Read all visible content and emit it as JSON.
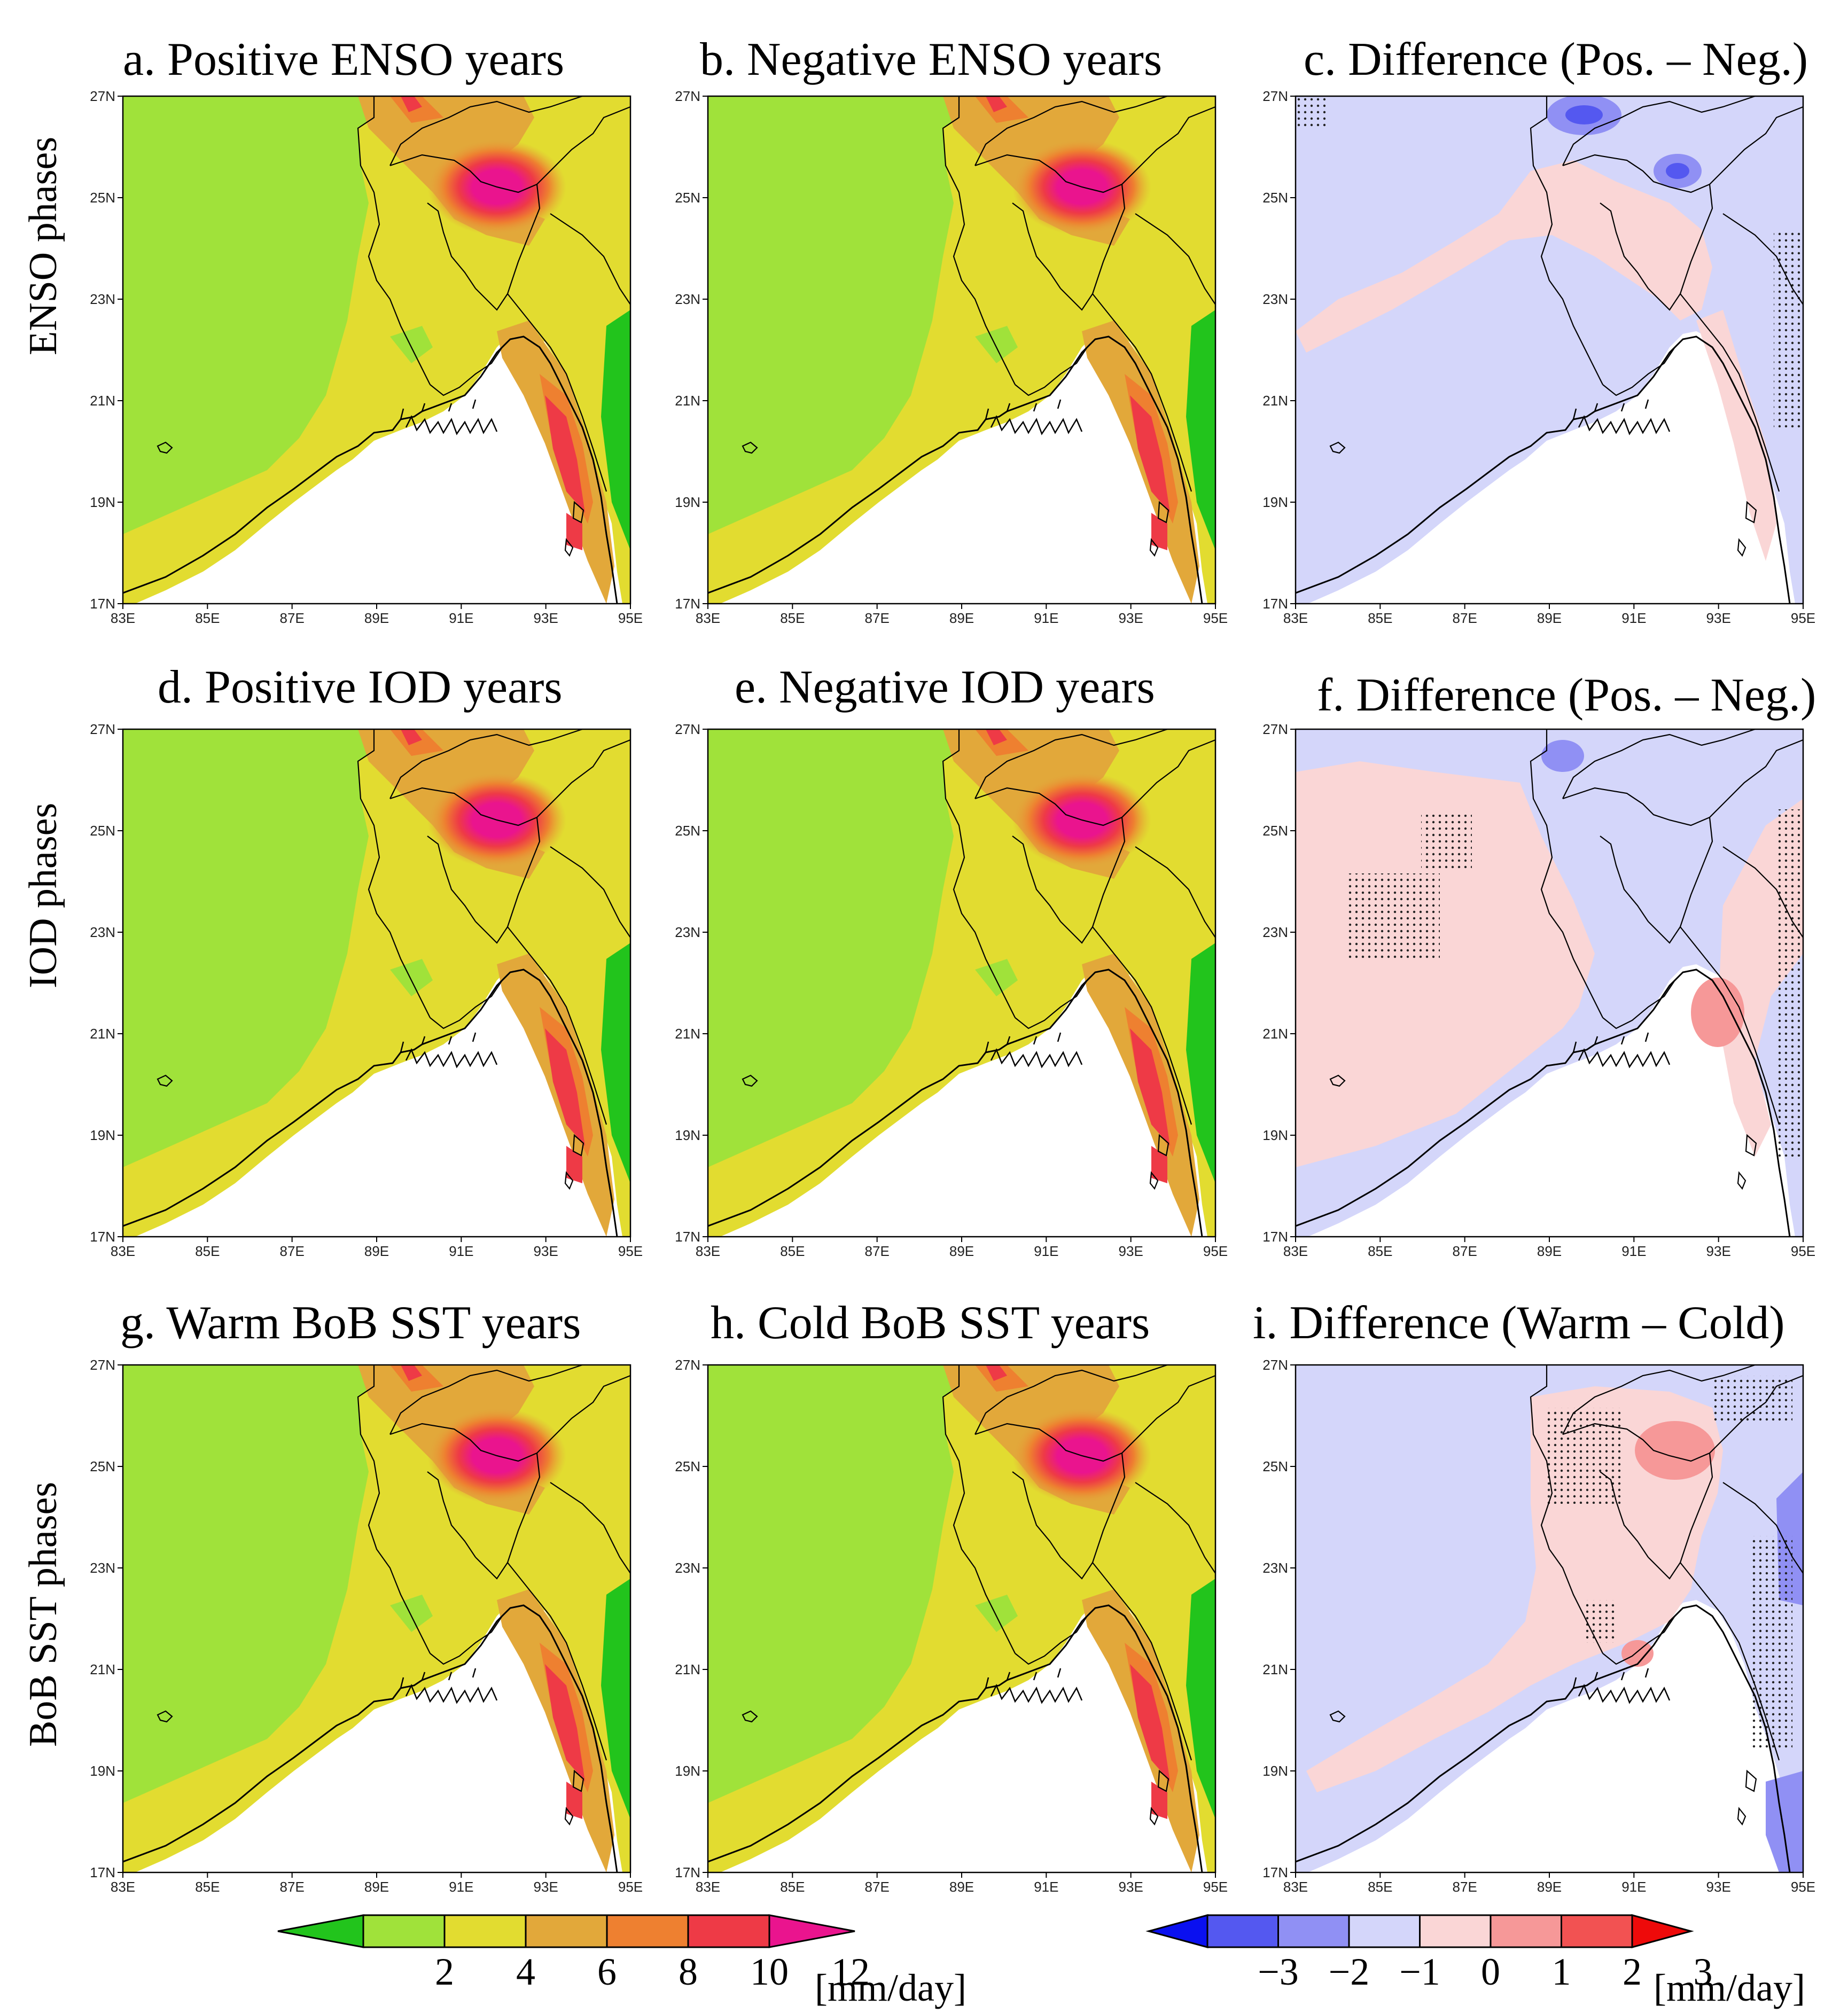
{
  "row_labels": [
    "ENSO phases",
    "IOD phases",
    "BoB SST  phases"
  ],
  "panels": [
    {
      "id": "a",
      "title": "a. Positive ENSO years",
      "kind": "mean"
    },
    {
      "id": "b",
      "title": "b. Negative ENSO years",
      "kind": "mean"
    },
    {
      "id": "c",
      "title": "c. Difference (Pos. – Neg.)",
      "kind": "diff"
    },
    {
      "id": "d",
      "title": "d. Positive IOD years",
      "kind": "mean"
    },
    {
      "id": "e",
      "title": "e. Negative IOD years",
      "kind": "mean"
    },
    {
      "id": "f",
      "title": "f. Difference (Pos. – Neg.)",
      "kind": "diff"
    },
    {
      "id": "g",
      "title": "g. Warm BoB SST years",
      "kind": "mean"
    },
    {
      "id": "h",
      "title": "h. Cold BoB SST years",
      "kind": "mean"
    },
    {
      "id": "i",
      "title": "i. Difference (Warm – Cold)",
      "kind": "diff"
    }
  ],
  "lat_ticks": [
    "27N",
    "25N",
    "23N",
    "21N",
    "19N",
    "17N"
  ],
  "lon_ticks": [
    "83E",
    "85E",
    "87E",
    "89E",
    "91E",
    "93E",
    "95E"
  ],
  "extent": {
    "lon": [
      83,
      95
    ],
    "lat": [
      17,
      27
    ]
  },
  "colorbar_mean": {
    "labels": [
      "2",
      "4",
      "6",
      "8",
      "10",
      "12"
    ],
    "unit": "[mm/day]",
    "colors": [
      "#22c41c",
      "#a0e23a",
      "#e2dc30",
      "#e2a83a",
      "#ee8030",
      "#ee3a46",
      "#ea148e"
    ]
  },
  "colorbar_diff": {
    "labels": [
      "−3",
      "−2",
      "−1",
      "0",
      "1",
      "2",
      "3"
    ],
    "unit": "[mm/day]",
    "colors": [
      "#0a10f0",
      "#5458f0",
      "#9090f4",
      "#d4d6fa",
      "#fad6d6",
      "#f69898",
      "#f25252",
      "#ee0a0a"
    ]
  }
}
